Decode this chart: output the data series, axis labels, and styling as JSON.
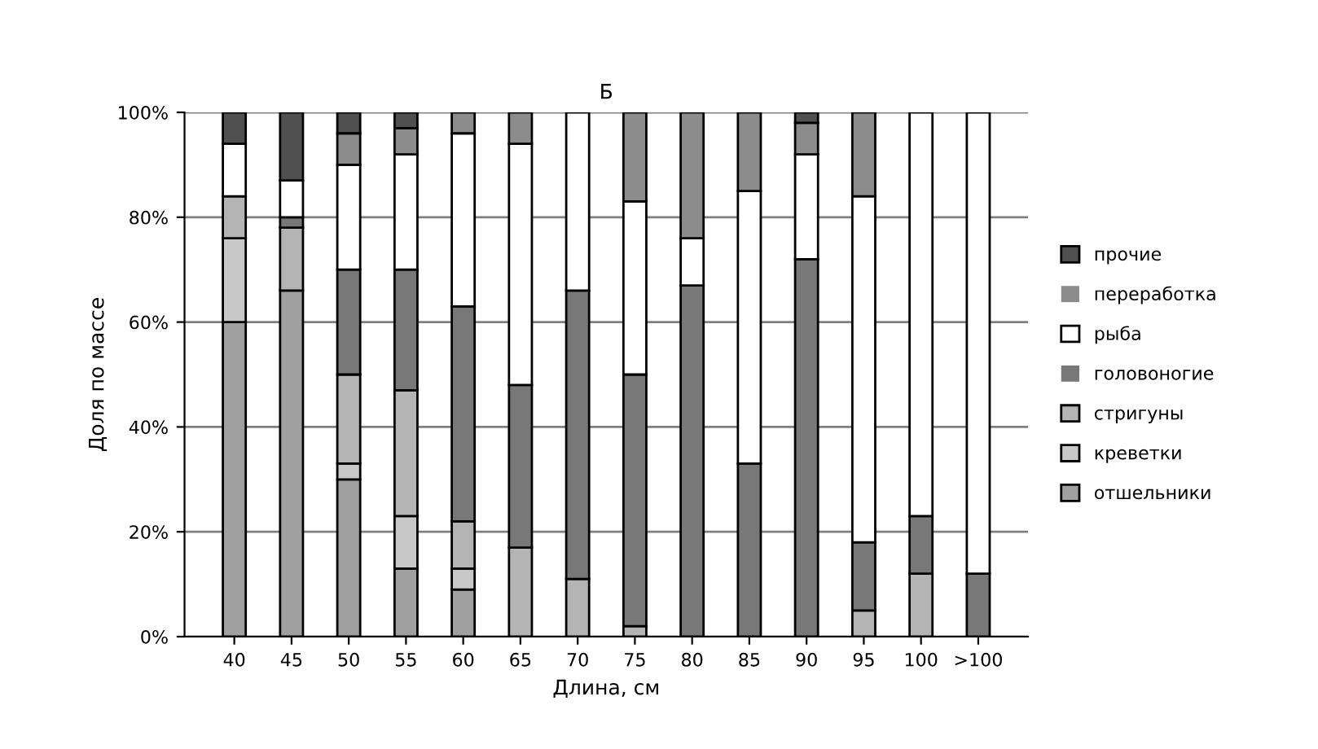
{
  "chart_data": {
    "type": "bar",
    "title": "Б",
    "xlabel": "Длина, см",
    "ylabel": "Доля по массе",
    "categories": [
      "40",
      "45",
      "50",
      "55",
      "60",
      "65",
      "70",
      "75",
      "80",
      "85",
      "90",
      "95",
      "100",
      ">100"
    ],
    "stacked": true,
    "ylim": [
      0,
      100
    ],
    "yticks": [
      {
        "value": 0,
        "label": "0%"
      },
      {
        "value": 20,
        "label": "20%"
      },
      {
        "value": 40,
        "label": "40%"
      },
      {
        "value": 60,
        "label": "60%"
      },
      {
        "value": 80,
        "label": "80%"
      },
      {
        "value": 100,
        "label": "100%"
      }
    ],
    "grid": "y",
    "legend": "right",
    "series": [
      {
        "name": "отшельники",
        "color": "#a0a0a0",
        "values": [
          60,
          66,
          30,
          13,
          9,
          0,
          0,
          0,
          0,
          0,
          0,
          0,
          0,
          0
        ]
      },
      {
        "name": "креветки",
        "color": "#c8c8c8",
        "values": [
          16,
          0,
          3,
          10,
          4,
          0,
          0,
          0,
          0,
          0,
          0,
          0,
          0,
          0
        ]
      },
      {
        "name": "стригуны",
        "color": "#b4b4b4",
        "values": [
          8,
          12,
          17,
          24,
          9,
          17,
          11,
          2,
          0,
          0,
          0,
          5,
          12,
          0
        ]
      },
      {
        "name": "головоногие",
        "color": "#787878",
        "values": [
          0,
          2,
          20,
          23,
          41,
          31,
          55,
          48,
          67,
          33,
          72,
          13,
          11,
          12
        ]
      },
      {
        "name": "рыба",
        "color": "#ffffff",
        "values": [
          10,
          7,
          20,
          22,
          33,
          46,
          34,
          33,
          9,
          52,
          20,
          66,
          77,
          88
        ]
      },
      {
        "name": "переработка",
        "color": "#8c8c8c",
        "values": [
          0,
          0,
          6,
          5,
          4,
          6,
          0,
          17,
          24,
          15,
          6,
          16,
          0,
          0
        ]
      },
      {
        "name": "прочие",
        "color": "#505050",
        "values": [
          6,
          13,
          4,
          3,
          0,
          0,
          0,
          0,
          0,
          0,
          2,
          0,
          0,
          0
        ]
      }
    ]
  }
}
